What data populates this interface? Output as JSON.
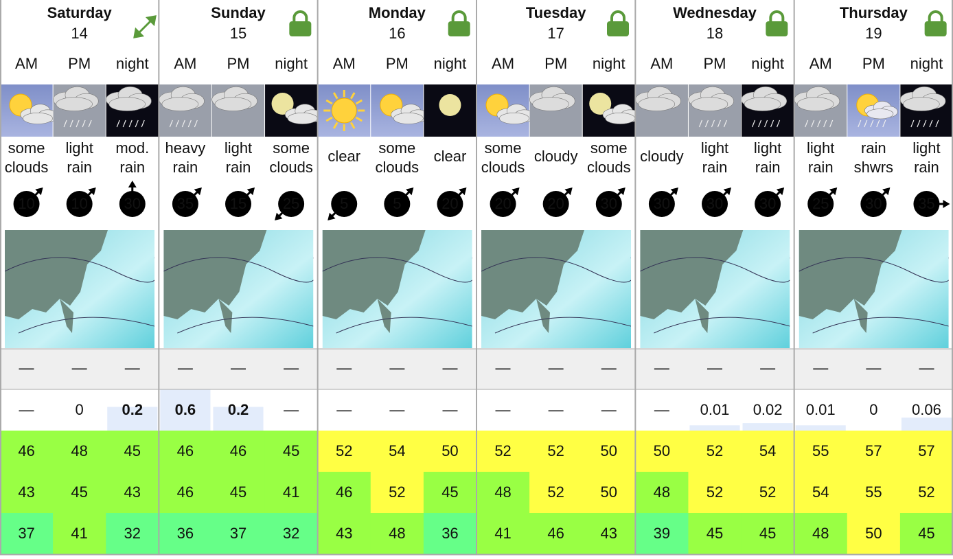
{
  "days": [
    {
      "name": "Saturday",
      "date": 14,
      "periods": [
        {
          "label": "AM",
          "summary": [
            "some",
            "clouds"
          ],
          "wind": {
            "speed": 10,
            "color": "#ffffff",
            "dir": 45
          },
          "snow": "—",
          "rain": "—",
          "temps": [
            46,
            43,
            37
          ]
        },
        {
          "label": "PM",
          "summary": [
            "light",
            "rain"
          ],
          "wind": {
            "speed": 10,
            "color": "#66ee44",
            "dir": 45
          },
          "snow": "—",
          "rain": 0,
          "temps": [
            48,
            45,
            41
          ]
        },
        {
          "label": "night",
          "summary": [
            "mod.",
            "rain"
          ],
          "wind": {
            "speed": 30,
            "color": "#ffee44",
            "dir": 0
          },
          "snow": "—",
          "rain": 0.2,
          "temps": [
            45,
            43,
            32
          ]
        }
      ]
    },
    {
      "name": "Sunday",
      "date": 15,
      "periods": [
        {
          "label": "AM",
          "summary": [
            "heavy",
            "rain"
          ],
          "wind": {
            "speed": 35,
            "color": "#f0a030",
            "dir": 45
          },
          "snow": "—",
          "rain": 0.6,
          "temps": [
            46,
            46,
            36
          ]
        },
        {
          "label": "PM",
          "summary": [
            "light",
            "rain"
          ],
          "wind": {
            "speed": 15,
            "color": "#66ee44",
            "dir": 45
          },
          "snow": "—",
          "rain": 0.2,
          "temps": [
            46,
            45,
            37
          ]
        },
        {
          "label": "night",
          "summary": [
            "some",
            "clouds"
          ],
          "wind": {
            "speed": 25,
            "color": "#ffee44",
            "dir": 225
          },
          "snow": "—",
          "rain": "—",
          "temps": [
            45,
            41,
            32
          ]
        }
      ]
    },
    {
      "name": "Monday",
      "date": 16,
      "periods": [
        {
          "label": "AM",
          "summary": [
            "clear"
          ],
          "wind": {
            "speed": 5,
            "color": "#ffffff",
            "dir": 225
          },
          "snow": "—",
          "rain": "—",
          "temps": [
            52,
            46,
            43
          ]
        },
        {
          "label": "PM",
          "summary": [
            "some",
            "clouds"
          ],
          "wind": {
            "speed": 5,
            "color": "#ffffff",
            "dir": 45
          },
          "snow": "—",
          "rain": "—",
          "temps": [
            54,
            52,
            48
          ]
        },
        {
          "label": "night",
          "summary": [
            "clear"
          ],
          "wind": {
            "speed": 20,
            "color": "#66ee44",
            "dir": 45
          },
          "snow": "—",
          "rain": "—",
          "temps": [
            50,
            45,
            36
          ]
        }
      ]
    },
    {
      "name": "Tuesday",
      "date": 17,
      "periods": [
        {
          "label": "AM",
          "summary": [
            "some",
            "clouds"
          ],
          "wind": {
            "speed": 20,
            "color": "#66ee44",
            "dir": 45
          },
          "snow": "—",
          "rain": "—",
          "temps": [
            52,
            48,
            41
          ]
        },
        {
          "label": "PM",
          "summary": [
            "cloudy"
          ],
          "wind": {
            "speed": 20,
            "color": "#66ee44",
            "dir": 45
          },
          "snow": "—",
          "rain": "—",
          "temps": [
            52,
            52,
            46
          ]
        },
        {
          "label": "night",
          "summary": [
            "some",
            "clouds"
          ],
          "wind": {
            "speed": 30,
            "color": "#ffee44",
            "dir": 45
          },
          "snow": "—",
          "rain": "—",
          "temps": [
            50,
            50,
            43
          ]
        }
      ]
    },
    {
      "name": "Wednesday",
      "date": 18,
      "periods": [
        {
          "label": "AM",
          "summary": [
            "cloudy"
          ],
          "wind": {
            "speed": 30,
            "color": "#ffee44",
            "dir": 45
          },
          "snow": "—",
          "rain": "—",
          "temps": [
            50,
            48,
            39
          ]
        },
        {
          "label": "PM",
          "summary": [
            "light",
            "rain"
          ],
          "wind": {
            "speed": 30,
            "color": "#ffee44",
            "dir": 45
          },
          "snow": "—",
          "rain": 0.01,
          "temps": [
            52,
            52,
            45
          ]
        },
        {
          "label": "night",
          "summary": [
            "light",
            "rain"
          ],
          "wind": {
            "speed": 30,
            "color": "#ffee44",
            "dir": 45
          },
          "snow": "—",
          "rain": 0.02,
          "temps": [
            54,
            52,
            45
          ]
        }
      ]
    },
    {
      "name": "Thursday",
      "date": 19,
      "periods": [
        {
          "label": "AM",
          "summary": [
            "light",
            "rain"
          ],
          "wind": {
            "speed": 25,
            "color": "#ffee44",
            "dir": 45
          },
          "snow": "—",
          "rain": 0.01,
          "temps": [
            55,
            54,
            48
          ]
        },
        {
          "label": "PM",
          "summary": [
            "rain",
            "shwrs"
          ],
          "wind": {
            "speed": 30,
            "color": "#ffee44",
            "dir": 45
          },
          "snow": "—",
          "rain": 0,
          "temps": [
            57,
            55,
            50
          ]
        },
        {
          "label": "night",
          "summary": [
            "light",
            "rain"
          ],
          "wind": {
            "speed": 35,
            "color": "#ffffff",
            "dir": 90
          },
          "snow": "—",
          "rain": 0.06,
          "temps": [
            57,
            52,
            45
          ]
        }
      ]
    }
  ]
}
